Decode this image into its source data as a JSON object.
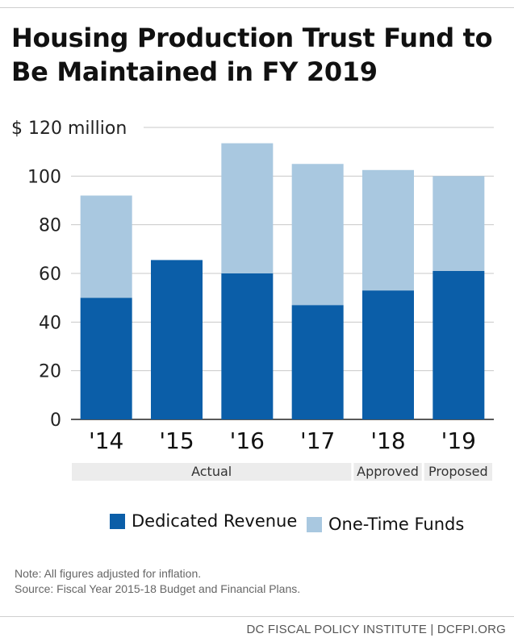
{
  "title": "Housing Production Trust Fund to Be Maintained in FY 2019",
  "chart_data": {
    "type": "bar",
    "stacked": true,
    "categories": [
      "'14",
      "'15",
      "'16",
      "'17",
      "'18",
      "'19"
    ],
    "series": [
      {
        "name": "Dedicated Revenue",
        "values": [
          50,
          65.5,
          60,
          47,
          53,
          61
        ],
        "color": "#0b5ea8"
      },
      {
        "name": "One-Time Funds",
        "values": [
          42,
          0,
          53.5,
          58,
          49.5,
          39
        ],
        "color": "#a9c8e0"
      }
    ],
    "ylim": [
      0,
      120
    ],
    "yticks": [
      0,
      20,
      40,
      60,
      80,
      100,
      120
    ],
    "ytick_labels": [
      "0",
      "20",
      "40",
      "60",
      "80",
      "100",
      "$ 120 million"
    ],
    "grid": true,
    "legend_position": "bottom",
    "groups": [
      {
        "label": "Actual",
        "span": [
          0,
          3
        ]
      },
      {
        "label": "Approved",
        "span": [
          4,
          4
        ]
      },
      {
        "label": "Proposed",
        "span": [
          5,
          5
        ]
      }
    ]
  },
  "note": "Note: All figures adjusted for inflation.",
  "source": "Source: Fiscal Year 2015-18 Budget and Financial Plans.",
  "footer": "DC FISCAL POLICY INSTITUTE | DCFPI.ORG"
}
